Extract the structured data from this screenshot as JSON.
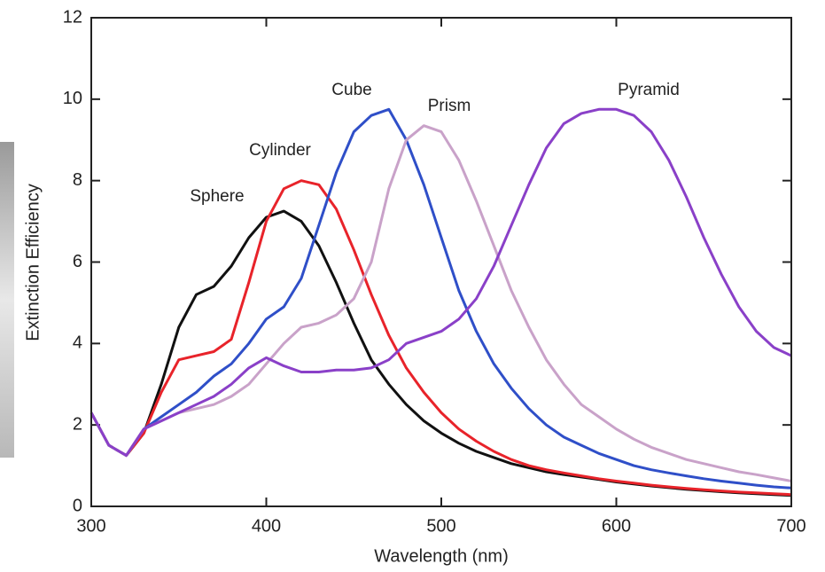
{
  "chart_data": {
    "type": "line",
    "x_label": "Wavelength (nm)",
    "y_label": "Extinction Efficiency",
    "x": [
      300,
      310,
      320,
      330,
      340,
      350,
      360,
      370,
      380,
      390,
      400,
      410,
      420,
      430,
      440,
      450,
      460,
      470,
      480,
      490,
      500,
      510,
      520,
      530,
      540,
      550,
      560,
      570,
      580,
      590,
      600,
      610,
      620,
      630,
      640,
      650,
      660,
      670,
      680,
      690,
      700
    ],
    "series": [
      {
        "name": "Sphere",
        "color": "#111111",
        "values": [
          2.3,
          1.5,
          1.25,
          1.8,
          3.0,
          4.4,
          5.2,
          5.4,
          5.9,
          6.6,
          7.1,
          7.25,
          7.0,
          6.4,
          5.5,
          4.5,
          3.6,
          3.0,
          2.5,
          2.1,
          1.8,
          1.55,
          1.35,
          1.2,
          1.05,
          0.95,
          0.85,
          0.78,
          0.72,
          0.66,
          0.6,
          0.55,
          0.5,
          0.46,
          0.42,
          0.39,
          0.36,
          0.33,
          0.31,
          0.29,
          0.27
        ]
      },
      {
        "name": "Cylinder",
        "color": "#e8232a",
        "values": [
          2.3,
          1.5,
          1.25,
          1.8,
          2.8,
          3.6,
          3.7,
          3.8,
          4.1,
          5.5,
          7.0,
          7.8,
          8.0,
          7.9,
          7.3,
          6.3,
          5.2,
          4.2,
          3.4,
          2.8,
          2.3,
          1.9,
          1.6,
          1.35,
          1.15,
          1.0,
          0.9,
          0.82,
          0.75,
          0.68,
          0.62,
          0.57,
          0.52,
          0.48,
          0.44,
          0.41,
          0.38,
          0.35,
          0.33,
          0.31,
          0.29
        ]
      },
      {
        "name": "Cube",
        "color": "#2f4fc8",
        "values": [
          2.3,
          1.5,
          1.25,
          1.9,
          2.2,
          2.5,
          2.8,
          3.2,
          3.5,
          4.0,
          4.6,
          4.9,
          5.6,
          6.9,
          8.2,
          9.2,
          9.6,
          9.75,
          9.0,
          7.9,
          6.6,
          5.3,
          4.3,
          3.5,
          2.9,
          2.4,
          2.0,
          1.7,
          1.5,
          1.3,
          1.15,
          1.0,
          0.9,
          0.82,
          0.75,
          0.68,
          0.62,
          0.57,
          0.52,
          0.48,
          0.45
        ]
      },
      {
        "name": "Prism",
        "color": "#c9a2c9",
        "values": [
          2.3,
          1.5,
          1.25,
          1.9,
          2.1,
          2.3,
          2.4,
          2.5,
          2.7,
          3.0,
          3.5,
          4.0,
          4.4,
          4.5,
          4.7,
          5.1,
          6.0,
          7.8,
          9.0,
          9.35,
          9.2,
          8.5,
          7.5,
          6.4,
          5.3,
          4.4,
          3.6,
          3.0,
          2.5,
          2.2,
          1.9,
          1.65,
          1.45,
          1.3,
          1.15,
          1.05,
          0.95,
          0.85,
          0.78,
          0.7,
          0.62
        ]
      },
      {
        "name": "Pyramid",
        "color": "#8a40c8",
        "values": [
          2.3,
          1.5,
          1.25,
          1.9,
          2.1,
          2.3,
          2.5,
          2.7,
          3.0,
          3.4,
          3.65,
          3.45,
          3.3,
          3.3,
          3.35,
          3.35,
          3.4,
          3.6,
          4.0,
          4.15,
          4.3,
          4.6,
          5.1,
          5.9,
          6.9,
          7.9,
          8.8,
          9.4,
          9.65,
          9.75,
          9.75,
          9.6,
          9.2,
          8.5,
          7.6,
          6.6,
          5.7,
          4.9,
          4.3,
          3.9,
          3.7
        ]
      }
    ],
    "xlim": [
      300,
      700
    ],
    "xticks": [
      300,
      400,
      500,
      600,
      700
    ],
    "ylim": [
      0,
      12
    ],
    "yticks": [
      0,
      2,
      4,
      6,
      8,
      10,
      12
    ]
  }
}
